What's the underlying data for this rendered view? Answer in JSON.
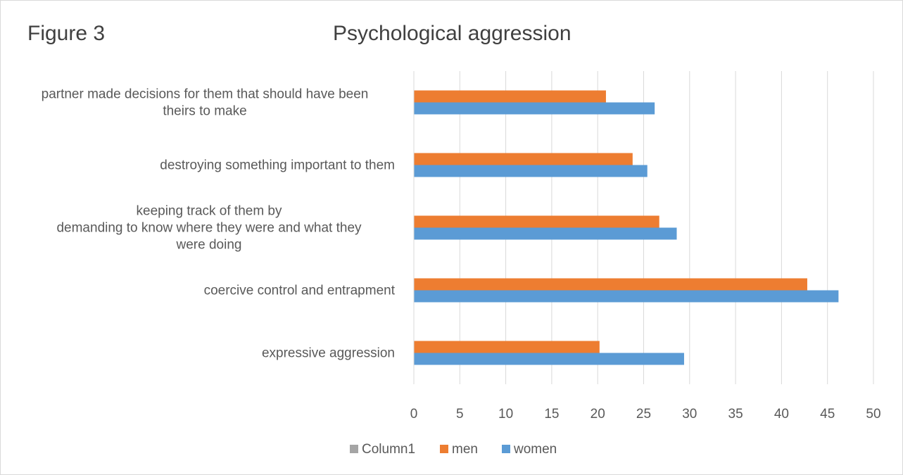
{
  "figure_label": "Figure 3",
  "chart_data": {
    "type": "bar",
    "orientation": "horizontal",
    "title": "Psychological aggression",
    "categories": [
      "partner made decisions for them that should have been theirs to make",
      "destroying something important to them",
      "keeping track of them by demanding to know where they were and what they were doing",
      "coercive control and entrapment",
      "expressive aggression"
    ],
    "category_lines": [
      [
        "partner made decisions for them that should have been",
        "theirs to make"
      ],
      [
        "destroying something important to them"
      ],
      [
        "keeping track of them by",
        "demanding to know where they were and what they",
        "were doing"
      ],
      [
        "coercive control and entrapment"
      ],
      [
        "expressive aggression"
      ]
    ],
    "series": [
      {
        "name": "Column1",
        "color": "#a5a5a5",
        "values": [
          null,
          null,
          null,
          null,
          null
        ]
      },
      {
        "name": "men",
        "color": "#ed7d31",
        "values": [
          20.9,
          23.8,
          26.7,
          42.8,
          20.2
        ]
      },
      {
        "name": "women",
        "color": "#5b9bd5",
        "values": [
          26.2,
          25.4,
          28.6,
          46.2,
          29.4
        ]
      }
    ],
    "xlim": [
      0,
      50
    ],
    "xticks": [
      "0",
      "5",
      "10",
      "15",
      "20",
      "25",
      "30",
      "35",
      "40",
      "45",
      "50"
    ],
    "grid": true,
    "legend_position": "bottom"
  }
}
